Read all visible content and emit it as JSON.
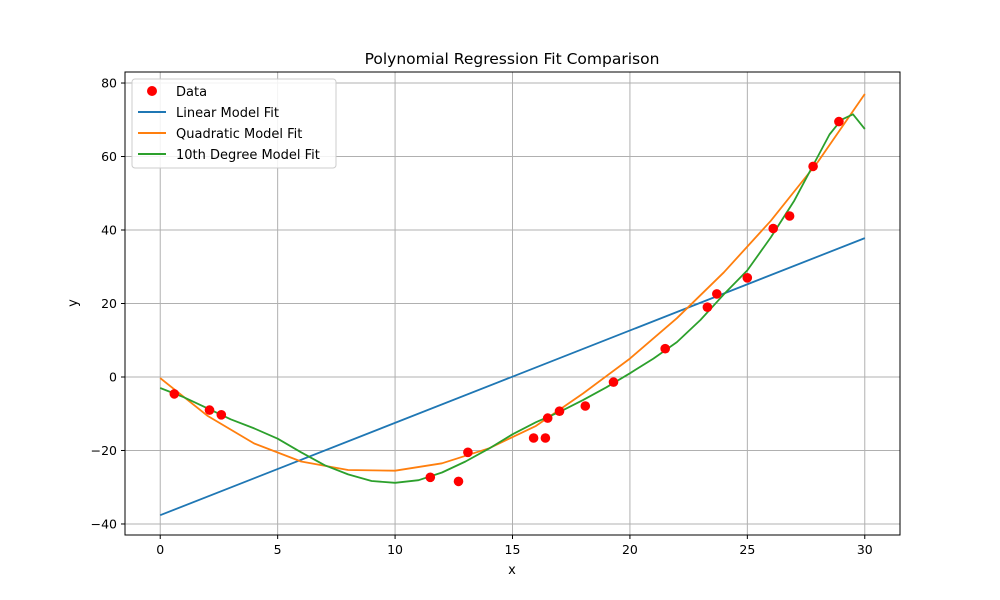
{
  "chart_data": {
    "type": "scatter",
    "title": "Polynomial Regression Fit Comparison",
    "xlabel": "x",
    "ylabel": "y",
    "xlim": [
      -1.5,
      31.5
    ],
    "ylim": [
      -43,
      83
    ],
    "xticks": [
      0,
      5,
      10,
      15,
      20,
      25,
      30
    ],
    "yticks": [
      -40,
      -20,
      0,
      20,
      40,
      60,
      80
    ],
    "grid": true,
    "legend_position": "top-left",
    "scatter": {
      "name": "Data",
      "color": "#ff0000",
      "points": [
        [
          0.6,
          -4.6
        ],
        [
          2.1,
          -9.0
        ],
        [
          2.6,
          -10.3
        ],
        [
          11.5,
          -27.3
        ],
        [
          12.7,
          -28.4
        ],
        [
          13.1,
          -20.5
        ],
        [
          15.9,
          -16.6
        ],
        [
          16.4,
          -16.6
        ],
        [
          16.5,
          -11.2
        ],
        [
          17.0,
          -9.3
        ],
        [
          18.1,
          -7.9
        ],
        [
          19.3,
          -1.4
        ],
        [
          21.5,
          7.7
        ],
        [
          23.3,
          19.0
        ],
        [
          23.7,
          22.6
        ],
        [
          25.0,
          27.0
        ],
        [
          26.1,
          40.4
        ],
        [
          26.8,
          43.8
        ],
        [
          27.8,
          57.3
        ],
        [
          28.9,
          69.5
        ]
      ]
    },
    "series": [
      {
        "name": "Linear Model Fit",
        "color": "#1f77b4",
        "x": [
          0,
          30
        ],
        "y": [
          -37.6,
          37.8
        ]
      },
      {
        "name": "Quadratic Model Fit",
        "color": "#ff7f0e",
        "x": [
          0,
          2,
          4,
          6,
          8,
          10,
          12,
          14,
          16,
          18,
          20,
          22,
          24,
          26,
          28,
          30
        ],
        "y": [
          -0.3,
          -10.5,
          -18.1,
          -23.0,
          -25.3,
          -25.5,
          -23.5,
          -19.4,
          -13.3,
          -4.5,
          5.0,
          16.0,
          28.5,
          42.5,
          58.5,
          77.0
        ]
      },
      {
        "name": "10th Degree Model Fit",
        "color": "#2ca02c",
        "x": [
          0,
          1,
          2,
          3,
          4,
          5,
          6,
          7,
          8,
          9,
          10,
          11,
          12,
          13,
          14,
          15,
          16,
          17,
          18,
          19,
          20,
          21,
          22,
          23,
          24,
          25,
          26,
          27,
          28,
          28.5,
          29,
          29.5,
          30
        ],
        "y": [
          -3.0,
          -5.5,
          -8.5,
          -11.5,
          -14.0,
          -16.8,
          -20.5,
          -24.0,
          -26.5,
          -28.3,
          -28.8,
          -28.1,
          -26.0,
          -23.0,
          -19.5,
          -15.6,
          -12.3,
          -9.5,
          -6.3,
          -2.8,
          1.0,
          5.0,
          9.5,
          15.5,
          22.5,
          29.0,
          38.0,
          48.0,
          60.0,
          66.0,
          70.0,
          71.5,
          67.5
        ]
      }
    ]
  }
}
